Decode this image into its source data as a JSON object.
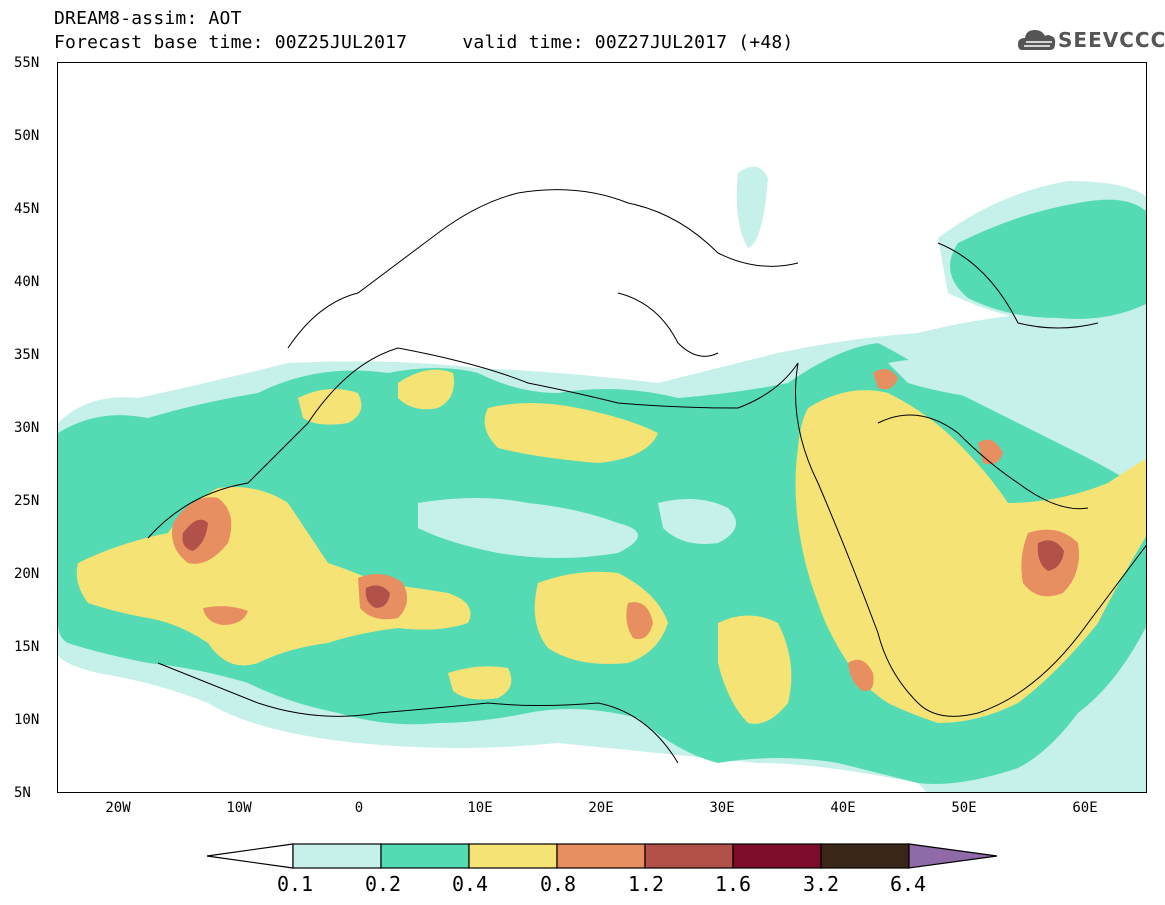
{
  "title": {
    "line1": "DREAM8-assim: AOT",
    "line2": "Forecast base time: 00Z25JUL2017     valid time: 00Z27JUL2017 (+48)"
  },
  "logo": {
    "text": "SEEVCCC",
    "icon": "cloud-icon"
  },
  "map": {
    "lat_labels": [
      "55N",
      "50N",
      "45N",
      "40N",
      "35N",
      "30N",
      "25N",
      "20N",
      "15N",
      "10N",
      "5N"
    ],
    "lon_labels": [
      "20W",
      "10W",
      "0",
      "10E",
      "20E",
      "30E",
      "40E",
      "50E",
      "60E"
    ]
  },
  "colorbar": {
    "labels": [
      "0.1",
      "0.2",
      "0.4",
      "0.8",
      "1.2",
      "1.6",
      "3.2",
      "6.4"
    ],
    "colors": [
      "#ffffff",
      "#c6f0ea",
      "#55dbb4",
      "#f5e375",
      "#e78f60",
      "#b2514a",
      "#7d0b2a",
      "#3a2616",
      "#8f6aa8"
    ]
  }
}
